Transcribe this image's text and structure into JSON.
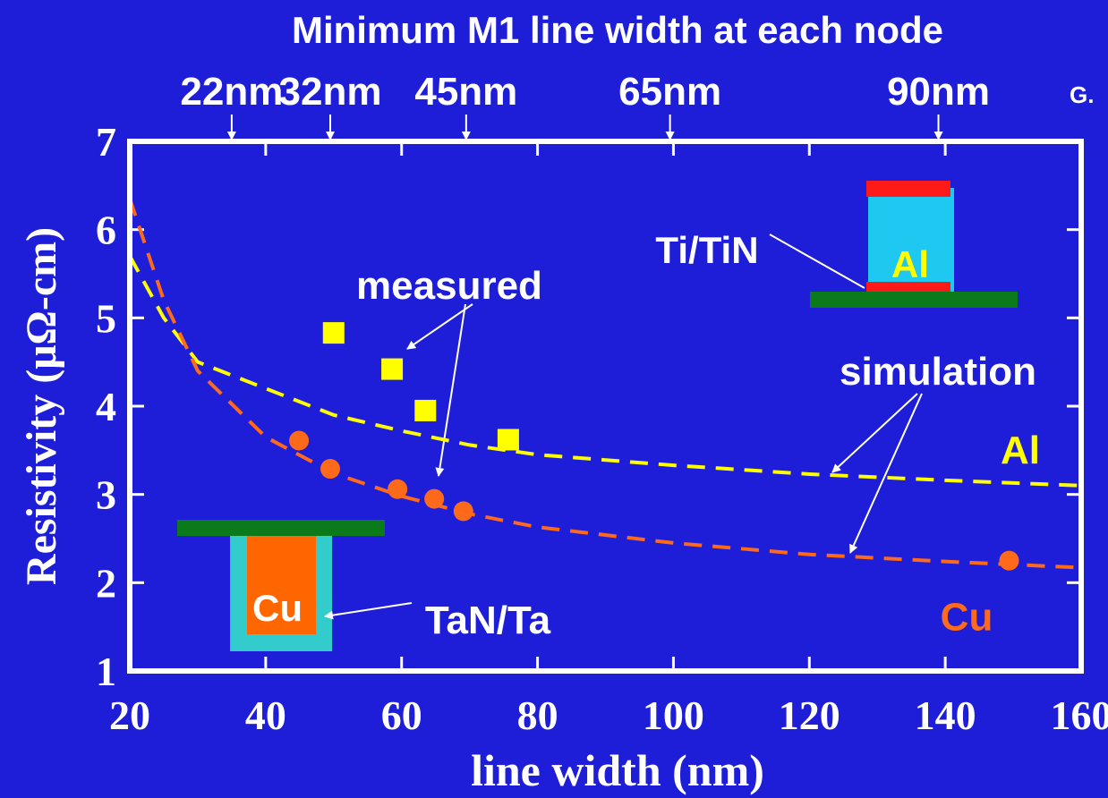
{
  "chart_data": {
    "type": "line",
    "title": "Minimum M1 line width at each node",
    "corner_text": "G.",
    "x_label": "line width (nm)",
    "y_label": "Resistivity (μΩ-cm)",
    "xlim": [
      20,
      160
    ],
    "ylim": [
      1,
      7
    ],
    "xticks": [
      20,
      40,
      60,
      80,
      100,
      120,
      140,
      160
    ],
    "yticks": [
      1,
      2,
      3,
      4,
      5,
      6,
      7
    ],
    "nodes": [
      {
        "label": "22nm",
        "x": 35
      },
      {
        "label": "32nm",
        "x": 49.5
      },
      {
        "label": "45nm",
        "x": 69.5
      },
      {
        "label": "65nm",
        "x": 99.5
      },
      {
        "label": "90nm",
        "x": 139
      }
    ],
    "series": [
      {
        "name": "Al",
        "color": "#ffff00",
        "style": "dashed",
        "x": [
          20,
          25,
          30,
          40,
          50,
          60,
          70,
          80,
          100,
          120,
          140,
          160
        ],
        "values": [
          5.7,
          5.0,
          4.5,
          4.2,
          3.9,
          3.72,
          3.56,
          3.45,
          3.33,
          3.23,
          3.16,
          3.1
        ]
      },
      {
        "name": "Cu",
        "color": "#ff6a1a",
        "style": "dashed",
        "x": [
          20,
          25,
          30,
          40,
          50,
          60,
          70,
          80,
          100,
          120,
          140,
          160
        ],
        "values": [
          6.35,
          5.2,
          4.4,
          3.65,
          3.24,
          2.98,
          2.78,
          2.63,
          2.45,
          2.32,
          2.24,
          2.17
        ]
      },
      {
        "color": "#ffff00",
        "style": "square",
        "x": [
          50,
          58.6,
          63.5,
          75.7
        ],
        "values": [
          4.83,
          4.42,
          3.95,
          3.62
        ]
      },
      {
        "color": "#ff6a1a",
        "style": "circle",
        "x": [
          44.9,
          49.5,
          59.4,
          64.8,
          69.1,
          149.4
        ],
        "values": [
          3.61,
          3.29,
          3.06,
          2.95,
          2.81,
          2.25
        ]
      }
    ],
    "annotations": {
      "measured": "measured",
      "simulation": "simulation",
      "ti_tin": "Ti/TiN",
      "tan_ta": "TaN/Ta",
      "al_structure": "Al",
      "cu_structure": "Cu"
    }
  }
}
